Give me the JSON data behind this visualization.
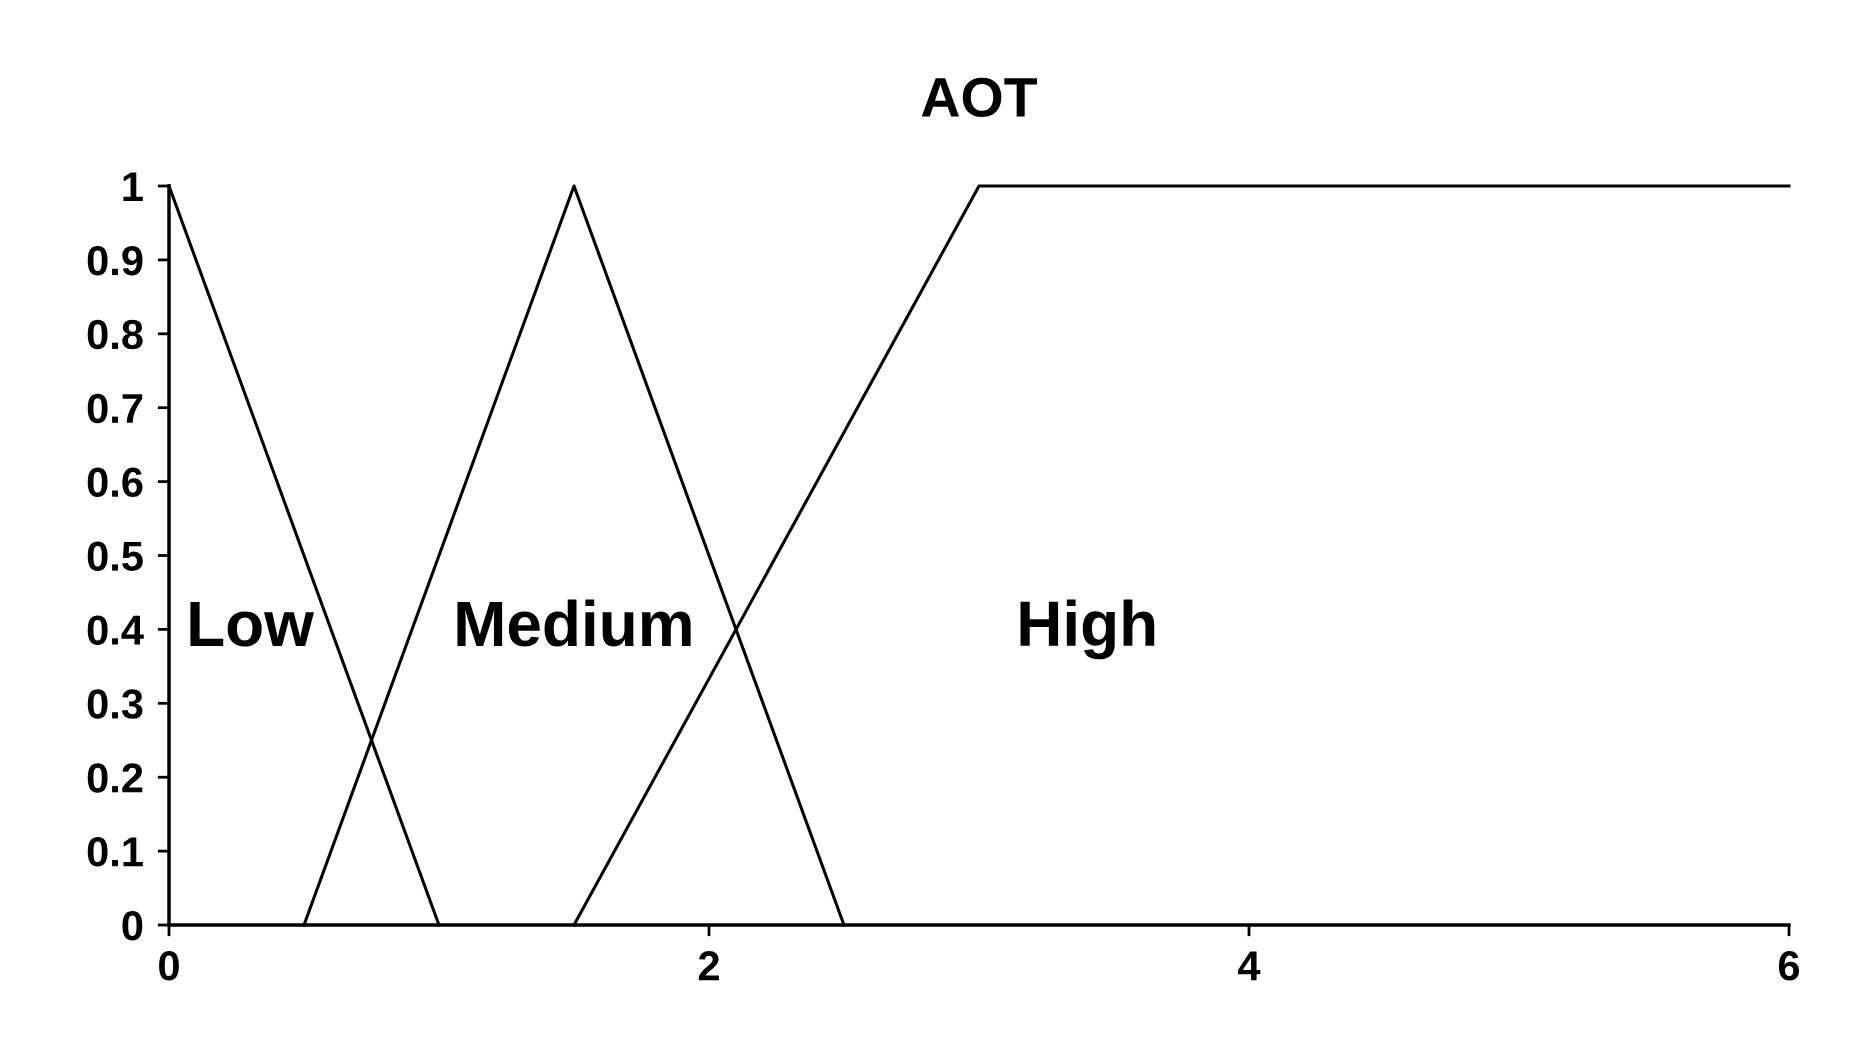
{
  "chart_data": {
    "type": "line",
    "title": "AOT",
    "series": [
      {
        "color": "#000000",
        "x": [
          0,
          1
        ],
        "values": [
          1,
          0
        ]
      },
      {
        "color": "#000000",
        "x": [
          0.5,
          1.5,
          2.5
        ],
        "values": [
          0,
          1,
          0
        ]
      },
      {
        "color": "#000000",
        "x": [
          1.5,
          3,
          6
        ],
        "values": [
          0,
          1,
          1
        ]
      }
    ],
    "annotations": [
      "Low",
      "Medium",
      "High"
    ],
    "xlim": [
      0,
      6
    ],
    "xticks": [
      0,
      2,
      4,
      6
    ],
    "ylim": [
      0,
      1
    ],
    "yticks": [
      0,
      0.1,
      0.2,
      0.3,
      0.4,
      0.5,
      0.6,
      0.7,
      0.8,
      0.9,
      1
    ],
    "grid": false,
    "legend": false,
    "marker": "none",
    "line_style": "solid"
  }
}
